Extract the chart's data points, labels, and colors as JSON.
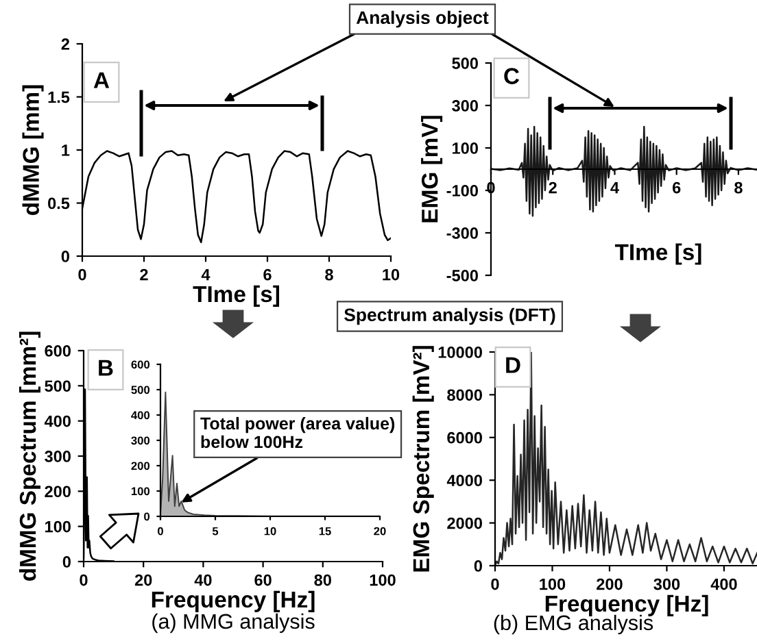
{
  "chart_data": [
    {
      "type": "line",
      "xlabel": "TIme [s]",
      "ylabel": "dMMG [mm]",
      "xlim": [
        0,
        10
      ],
      "ylim": [
        0,
        2
      ],
      "xticks": [
        0,
        2,
        4,
        6,
        8,
        10
      ],
      "yticks": [
        0,
        0.5,
        1,
        1.5,
        2
      ],
      "annotations": [
        "A",
        "Analysis object"
      ],
      "series": [
        {
          "color": "#000000",
          "x": [
            0,
            0.2,
            0.4,
            0.6,
            0.8,
            1.0,
            1.2,
            1.4,
            1.5,
            1.6,
            1.7,
            1.8,
            1.9,
            2.0,
            2.1,
            2.3,
            2.5,
            2.7,
            2.9,
            3.1,
            3.3,
            3.45,
            3.55,
            3.65,
            3.75,
            3.85,
            3.95,
            4.05,
            4.25,
            4.45,
            4.65,
            4.85,
            5.05,
            5.25,
            5.4,
            5.5,
            5.6,
            5.7,
            5.75,
            5.85,
            5.95,
            6.15,
            6.35,
            6.55,
            6.75,
            6.95,
            7.15,
            7.35,
            7.45,
            7.6,
            7.75,
            7.85,
            7.95,
            8.15,
            8.35,
            8.6,
            8.8,
            9.0,
            9.2,
            9.35,
            9.5,
            9.65,
            9.8,
            9.9,
            10
          ],
          "values": [
            0.45,
            0.75,
            0.88,
            0.95,
            0.99,
            0.97,
            0.94,
            0.96,
            0.97,
            0.85,
            0.55,
            0.25,
            0.16,
            0.3,
            0.62,
            0.82,
            0.93,
            0.98,
            0.99,
            0.95,
            0.96,
            0.95,
            0.75,
            0.45,
            0.2,
            0.13,
            0.3,
            0.6,
            0.82,
            0.93,
            0.98,
            0.97,
            0.94,
            0.96,
            0.96,
            0.75,
            0.42,
            0.24,
            0.22,
            0.3,
            0.6,
            0.82,
            0.93,
            0.99,
            0.98,
            0.94,
            0.97,
            0.96,
            0.75,
            0.35,
            0.19,
            0.3,
            0.6,
            0.82,
            0.93,
            0.99,
            0.97,
            0.94,
            0.96,
            0.95,
            0.75,
            0.4,
            0.2,
            0.15,
            0.17
          ]
        }
      ]
    },
    {
      "type": "line",
      "xlabel": "TIme [s]",
      "ylabel": "EMG [mV]",
      "xlim": [
        0,
        8.6
      ],
      "ylim": [
        -500,
        500
      ],
      "xticks": [
        0,
        2,
        4,
        6,
        8
      ],
      "yticks": [
        -500,
        -300,
        -100,
        100,
        300,
        500
      ],
      "annotations": [
        "C"
      ],
      "series": [
        {
          "color": "#1a1a1a",
          "x": [
            0,
            0.3,
            0.6,
            0.9,
            1.0,
            1.05,
            1.1,
            1.15,
            1.2,
            1.25,
            1.3,
            1.35,
            1.4,
            1.45,
            1.5,
            1.55,
            1.6,
            1.65,
            1.7,
            1.75,
            1.8,
            1.85,
            1.9,
            2.0,
            2.2,
            2.5,
            2.8,
            2.95,
            3.0,
            3.05,
            3.1,
            3.15,
            3.2,
            3.25,
            3.3,
            3.35,
            3.4,
            3.45,
            3.5,
            3.55,
            3.6,
            3.65,
            3.7,
            3.75,
            3.8,
            3.85,
            3.95,
            4.2,
            4.5,
            4.75,
            4.8,
            4.85,
            4.9,
            4.95,
            5.0,
            5.05,
            5.1,
            5.15,
            5.2,
            5.25,
            5.3,
            5.35,
            5.4,
            5.45,
            5.5,
            5.55,
            5.6,
            5.65,
            5.75,
            6.0,
            6.3,
            6.6,
            6.8,
            6.85,
            6.9,
            6.95,
            7.0,
            7.05,
            7.1,
            7.15,
            7.2,
            7.25,
            7.3,
            7.35,
            7.4,
            7.45,
            7.5,
            7.55,
            7.6,
            7.65,
            7.75,
            8.0,
            8.3,
            8.6
          ],
          "values": [
            2,
            -5,
            4,
            -3,
            30,
            -40,
            120,
            -150,
            190,
            -210,
            160,
            -220,
            200,
            -180,
            170,
            -160,
            150,
            -140,
            110,
            -100,
            60,
            -50,
            20,
            -8,
            6,
            -5,
            5,
            40,
            -60,
            150,
            -130,
            180,
            -190,
            170,
            -200,
            160,
            -170,
            140,
            -150,
            120,
            -130,
            100,
            -90,
            60,
            -40,
            15,
            -6,
            5,
            -5,
            30,
            -70,
            140,
            -150,
            200,
            -180,
            150,
            -200,
            130,
            -160,
            120,
            -140,
            110,
            -110,
            90,
            -80,
            70,
            -50,
            20,
            -6,
            5,
            -5,
            4,
            30,
            -60,
            120,
            -130,
            150,
            -150,
            130,
            -170,
            140,
            -140,
            150,
            -120,
            110,
            -100,
            80,
            -70,
            40,
            -20,
            6,
            -5,
            5,
            -3
          ]
        }
      ]
    },
    {
      "type": "line",
      "xlabel": "Frequency [Hz]",
      "ylabel": "dMMG Spectrum [mm²]",
      "xlim": [
        0,
        100
      ],
      "ylim": [
        0,
        600
      ],
      "xticks": [
        0,
        20,
        40,
        60,
        80,
        100
      ],
      "yticks": [
        0,
        100,
        200,
        300,
        400,
        500,
        600
      ],
      "annotations": [
        "B",
        "Spectrum analysis (DFT)",
        "(a) MMG analysis"
      ],
      "series": [
        {
          "color": "#000000",
          "x": [
            0,
            0.2,
            0.46,
            0.75,
            1.1,
            1.3,
            1.5,
            1.7,
            1.9,
            2.2,
            2.5,
            3,
            4,
            5,
            7,
            10
          ],
          "values": [
            10,
            150,
            490,
            60,
            240,
            40,
            130,
            40,
            60,
            25,
            15,
            8,
            5,
            3,
            2,
            1
          ]
        }
      ]
    },
    {
      "type": "area",
      "xlim": [
        0,
        20
      ],
      "ylim": [
        0,
        600
      ],
      "xticks": [
        0,
        5,
        10,
        15,
        20
      ],
      "yticks": [
        0,
        100,
        200,
        300,
        400,
        500,
        600
      ],
      "annotations": [
        {
          "text": "Total power (area value)\nbelow 100Hz",
          "x": 1.9,
          "y": 55
        }
      ],
      "series": [
        {
          "color": "#b3b3b3",
          "x": [
            0,
            0.2,
            0.46,
            0.75,
            1.1,
            1.3,
            1.5,
            1.7,
            1.9,
            2.2,
            2.5,
            3,
            4,
            5,
            7,
            10,
            15,
            20
          ],
          "values": [
            10,
            150,
            490,
            60,
            240,
            40,
            130,
            40,
            60,
            25,
            15,
            8,
            5,
            3,
            2,
            1,
            1,
            1
          ]
        }
      ]
    },
    {
      "type": "line",
      "xlabel": "Frequency [Hz]",
      "ylabel": "EMG Spectrum [mV²]",
      "xlim": [
        0,
        460
      ],
      "ylim": [
        0,
        10000
      ],
      "xticks": [
        0,
        100,
        200,
        300,
        400
      ],
      "yticks": [
        0,
        2000,
        4000,
        6000,
        8000,
        10000
      ],
      "annotations": [
        "D",
        "(b) EMG analysis"
      ],
      "series": [
        {
          "color": "#262626",
          "x": [
            0,
            3,
            6,
            9,
            12,
            15,
            18,
            21,
            24,
            27,
            30,
            33,
            36,
            39,
            42,
            45,
            48,
            51,
            54,
            57,
            60,
            63,
            66,
            69,
            72,
            75,
            78,
            81,
            84,
            87,
            90,
            93,
            96,
            99,
            102,
            105,
            110,
            115,
            120,
            125,
            130,
            135,
            140,
            145,
            150,
            155,
            160,
            165,
            170,
            175,
            180,
            185,
            190,
            195,
            200,
            210,
            220,
            230,
            240,
            250,
            258,
            265,
            272,
            280,
            290,
            300,
            310,
            320,
            330,
            340,
            350,
            360,
            370,
            380,
            390,
            400,
            410,
            420,
            430,
            440,
            450,
            458
          ],
          "values": [
            0,
            200,
            100,
            600,
            300,
            1300,
            700,
            2000,
            900,
            2200,
            1000,
            6600,
            1500,
            4200,
            1800,
            5200,
            2000,
            6800,
            1200,
            7300,
            2500,
            10000,
            1500,
            7000,
            2000,
            5500,
            3000,
            7500,
            1800,
            6500,
            1500,
            4500,
            1000,
            3500,
            800,
            3900,
            1000,
            3000,
            600,
            2600,
            700,
            2800,
            800,
            2900,
            900,
            3300,
            600,
            2600,
            700,
            3000,
            600,
            2500,
            500,
            2200,
            600,
            1900,
            500,
            1700,
            500,
            1900,
            600,
            2000,
            700,
            1500,
            300,
            1200,
            200,
            1200,
            200,
            1000,
            200,
            1300,
            200,
            900,
            150,
            900,
            150,
            800,
            150,
            800,
            100,
            600
          ]
        }
      ]
    }
  ]
}
